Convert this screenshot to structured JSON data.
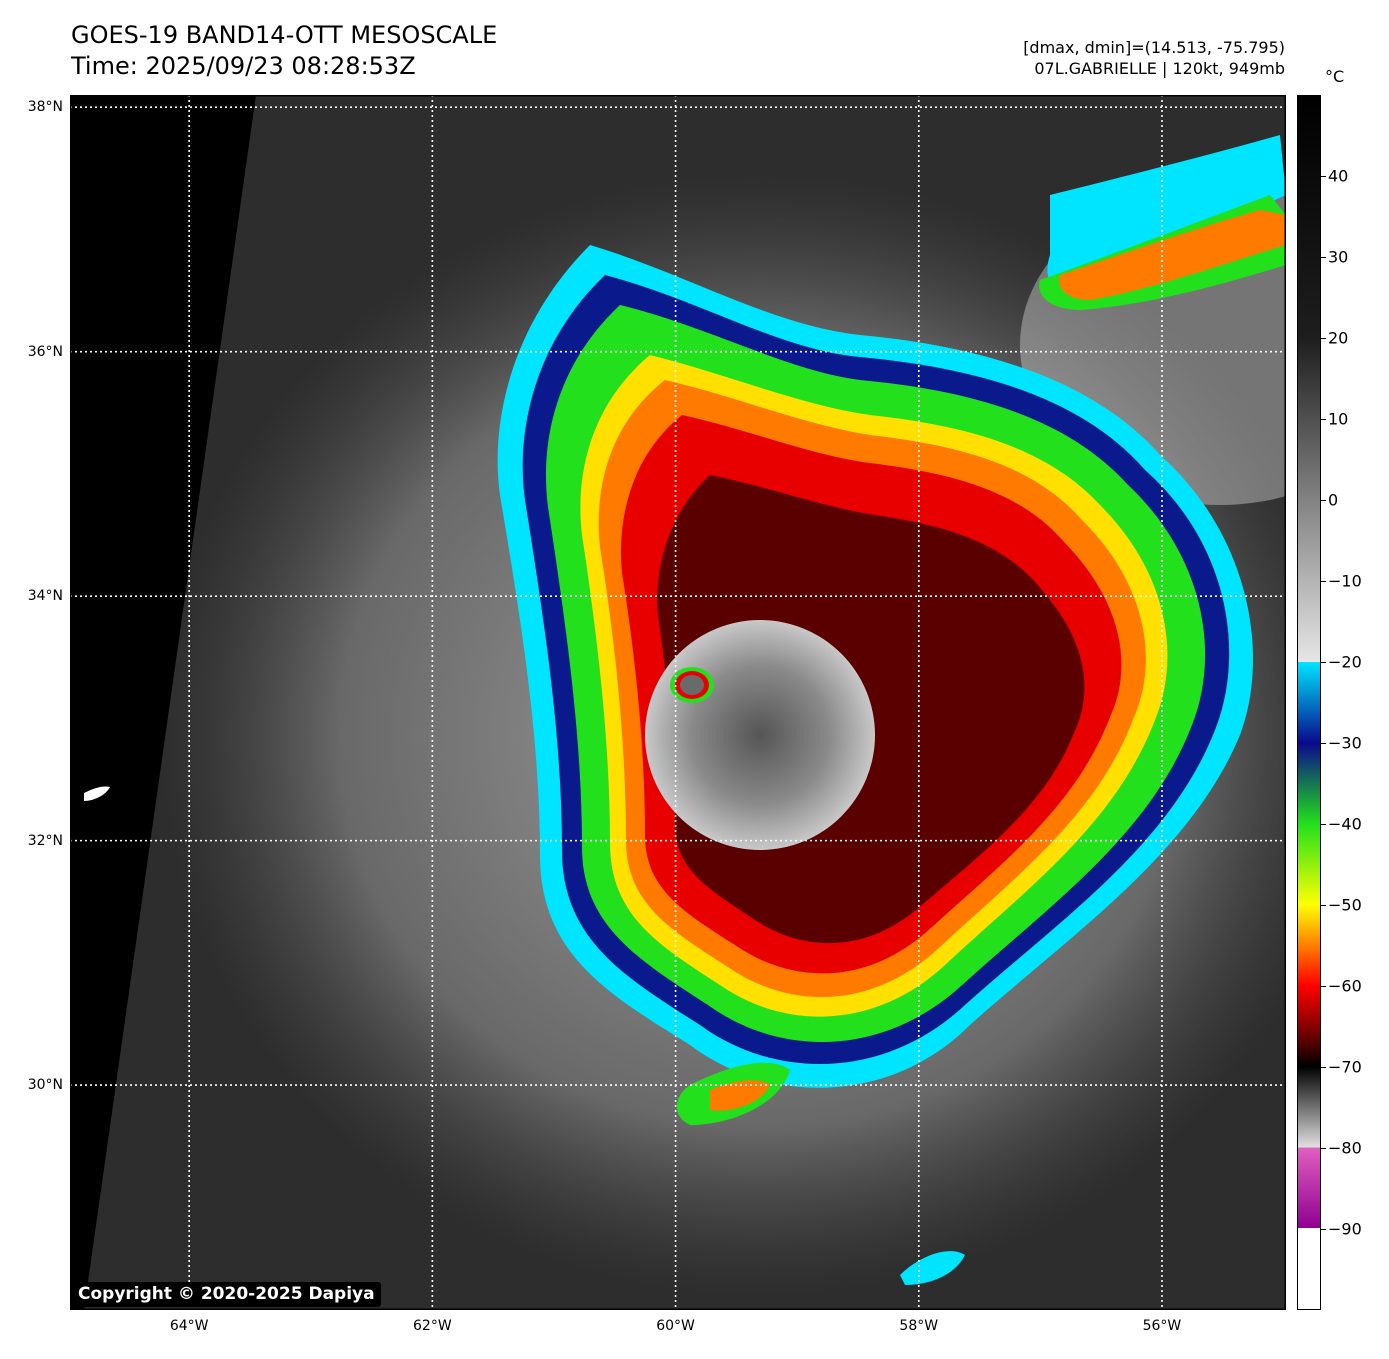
{
  "title": {
    "line1": "GOES-19 BAND14-OTT MESOSCALE",
    "line2": "Time: 2025/09/23 08:28:53Z"
  },
  "info": {
    "dmax_dmin": "[dmax, dmin]=(14.513, -75.795)",
    "storm": "07L.GABRIELLE | 120kt, 949mb"
  },
  "map": {
    "lat_labels": [
      {
        "label": "38°N",
        "value": 38
      },
      {
        "label": "36°N",
        "value": 36
      },
      {
        "label": "34°N",
        "value": 34
      },
      {
        "label": "32°N",
        "value": 32
      },
      {
        "label": "30°N",
        "value": 30
      }
    ],
    "lon_labels": [
      {
        "label": "64°W",
        "value": -64
      },
      {
        "label": "62°W",
        "value": -62
      },
      {
        "label": "60°W",
        "value": -60
      },
      {
        "label": "58°W",
        "value": -58
      },
      {
        "label": "56°W",
        "value": -56
      }
    ],
    "lat_range": [
      28.16,
      38.1
    ],
    "lon_range": [
      -64.98,
      -54.98
    ],
    "grid": "dotted white",
    "copyright": "Copyright © 2020-2025 Dapiya"
  },
  "colorbar": {
    "unit": "°C",
    "range": [
      -100,
      50
    ],
    "ticks": [
      {
        "label": "40",
        "value": 40
      },
      {
        "label": "30",
        "value": 30
      },
      {
        "label": "20",
        "value": 20
      },
      {
        "label": "10",
        "value": 10
      },
      {
        "label": "0",
        "value": 0
      },
      {
        "label": "−10",
        "value": -10
      },
      {
        "label": "−20",
        "value": -20
      },
      {
        "label": "−30",
        "value": -30
      },
      {
        "label": "−40",
        "value": -40
      },
      {
        "label": "−50",
        "value": -50
      },
      {
        "label": "−60",
        "value": -60
      },
      {
        "label": "−70",
        "value": -70
      },
      {
        "label": "−80",
        "value": -80
      },
      {
        "label": "−90",
        "value": -90
      }
    ]
  }
}
